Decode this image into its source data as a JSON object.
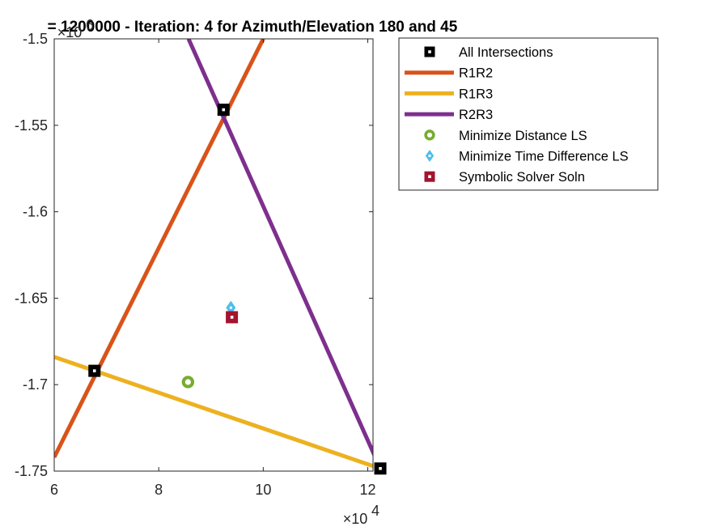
{
  "chart_data": {
    "type": "line",
    "title": "= 1200000 - Iteration: 4 for Azimuth/Elevation 180 and 45",
    "xlabel": "",
    "ylabel": "",
    "x_exponent_label": "×10",
    "x_exponent_power": "4",
    "y_exponent_label": "×10",
    "y_exponent_power": "6",
    "xlim": [
      60000,
      121000
    ],
    "ylim": [
      -1750000,
      -1500000
    ],
    "xticks": [
      60000,
      80000,
      100000,
      120000
    ],
    "xtick_labels": [
      "6",
      "8",
      "10",
      "12"
    ],
    "yticks": [
      -1500000,
      -1550000,
      -1600000,
      -1650000,
      -1700000,
      -1750000
    ],
    "ytick_labels": [
      "-1.5",
      "-1.55",
      "-1.6",
      "-1.65",
      "-1.7",
      "-1.75"
    ],
    "grid": false,
    "legend_position": "outside-right-top",
    "series": [
      {
        "name": "All Intersections",
        "kind": "marker",
        "marker": "square-hollow",
        "color": "#000000",
        "points": [
          [
            92400,
            -1541000
          ],
          [
            67700,
            -1692000
          ],
          [
            122400,
            -1748500
          ]
        ]
      },
      {
        "name": "R1R2",
        "kind": "line",
        "color": "#D95319",
        "points": [
          [
            60000,
            -1742000
          ],
          [
            100000,
            -1500000
          ]
        ]
      },
      {
        "name": "R1R3",
        "kind": "line",
        "color": "#EDB120",
        "points": [
          [
            60000,
            -1684000
          ],
          [
            122400,
            -1748500
          ]
        ]
      },
      {
        "name": "R2R3",
        "kind": "line",
        "color": "#7E2F8E",
        "points": [
          [
            85700,
            -1500000
          ],
          [
            122400,
            -1748500
          ]
        ]
      },
      {
        "name": "Minimize Distance LS",
        "kind": "marker",
        "marker": "circle-hollow",
        "color": "#77AC30",
        "points": [
          [
            85600,
            -1698500
          ]
        ]
      },
      {
        "name": "Minimize Time Difference LS",
        "kind": "marker",
        "marker": "diamond-hollow",
        "color": "#4DBEEE",
        "points": [
          [
            93800,
            -1655500
          ]
        ]
      },
      {
        "name": "Symbolic Solver Soln",
        "kind": "marker",
        "marker": "square-hollow",
        "color": "#A2142F",
        "points": [
          [
            94000,
            -1661000
          ]
        ]
      }
    ]
  }
}
